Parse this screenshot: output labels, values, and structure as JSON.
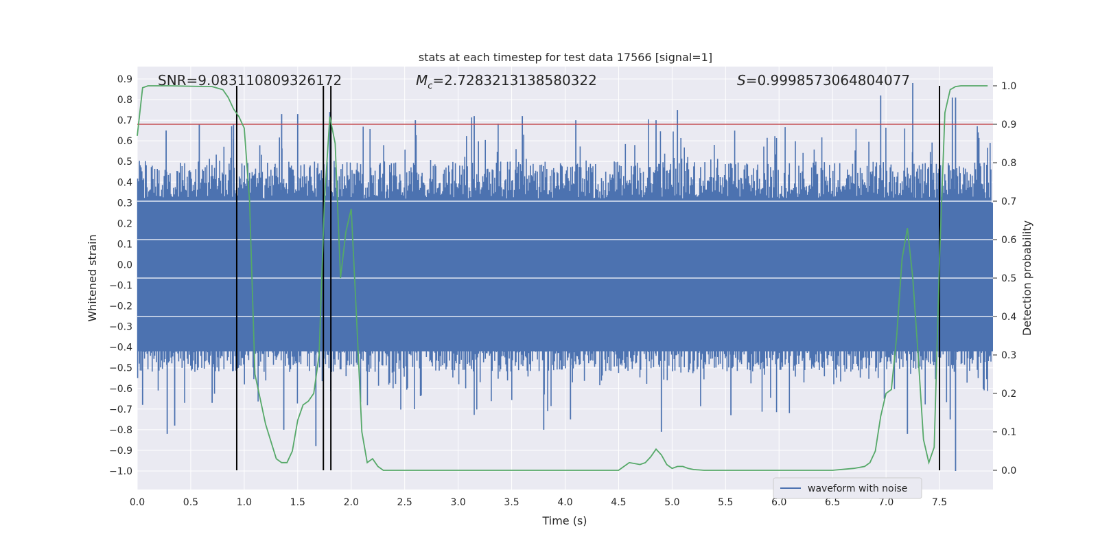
{
  "chart_data": {
    "type": "line",
    "title": "stats at each timestep for test data 17566 [signal=1]",
    "xlabel": "Time (s)",
    "ylabel_left": "Whitened strain",
    "ylabel_right": "Detection probability",
    "xlim": [
      0.0,
      8.0
    ],
    "ylim_left": [
      -1.09,
      0.96
    ],
    "ylim_right": [
      -0.05,
      1.05
    ],
    "x_ticks": [
      "0.0",
      "0.5",
      "1.0",
      "1.5",
      "2.0",
      "2.5",
      "3.0",
      "3.5",
      "4.0",
      "4.5",
      "5.0",
      "5.5",
      "6.0",
      "6.5",
      "7.0",
      "7.5"
    ],
    "y_left_ticks": [
      "0.9",
      "0.8",
      "0.7",
      "0.6",
      "0.5",
      "0.4",
      "0.3",
      "0.2",
      "0.1",
      "0.0",
      "−0.1",
      "−0.2",
      "−0.3",
      "−0.4",
      "−0.5",
      "−0.6",
      "−0.7",
      "−0.8",
      "−0.9",
      "−1.0"
    ],
    "y_right_ticks": [
      "1.0",
      "0.9",
      "0.8",
      "0.7",
      "0.6",
      "0.5",
      "0.4",
      "0.3",
      "0.2",
      "0.1",
      "0.0"
    ],
    "grid": true,
    "legend": {
      "placement": "lower-right",
      "entries": [
        "waveform with noise"
      ]
    },
    "annotations": {
      "snr": "SNR=9.083110809326172",
      "mc_symbol": "M",
      "mc_sub": "c",
      "mc_value": "=2.7283213138580322",
      "s_symbol": "S",
      "s_value": "=0.9998573064804077"
    },
    "threshold_probability": 0.9,
    "vertical_markers_time": [
      0.93,
      1.74,
      1.81,
      7.5
    ],
    "waveform": {
      "name": "waveform with noise",
      "samples_shown": "dense noise, approx. range -0.5 to 0.5 with spikes to 0.82 / -1.0",
      "peak_times": [
        0.27,
        0.58,
        0.9,
        1.35,
        1.5,
        1.8,
        2.6,
        3.15,
        3.6,
        4.1,
        4.85,
        5.05,
        6.95,
        7.25,
        7.62,
        7.65
      ],
      "peak_values": [
        0.65,
        0.68,
        0.68,
        0.73,
        0.73,
        0.74,
        0.7,
        0.72,
        0.72,
        0.7,
        0.7,
        0.75,
        0.82,
        0.88,
        0.81,
        0.81
      ],
      "trough_times": [
        0.05,
        0.28,
        0.35,
        0.7,
        1.37,
        1.67,
        3.8,
        4.05,
        4.9,
        5.55,
        7.2,
        7.6,
        7.65
      ],
      "trough_values": [
        -0.68,
        -0.82,
        -0.78,
        -0.67,
        -0.8,
        -0.88,
        -0.8,
        -0.75,
        -0.81,
        -0.73,
        -0.82,
        -0.75,
        -1.0
      ]
    },
    "probability_series": {
      "color": "#55a868",
      "x": [
        0.0,
        0.05,
        0.1,
        0.2,
        0.3,
        0.5,
        0.7,
        0.8,
        0.85,
        0.9,
        0.95,
        1.0,
        1.05,
        1.1,
        1.2,
        1.3,
        1.35,
        1.4,
        1.45,
        1.5,
        1.55,
        1.6,
        1.65,
        1.7,
        1.75,
        1.8,
        1.85,
        1.9,
        1.95,
        2.0,
        2.05,
        2.1,
        2.15,
        2.2,
        2.25,
        2.3,
        2.4,
        2.5,
        3.0,
        3.5,
        4.0,
        4.5,
        4.55,
        4.6,
        4.7,
        4.75,
        4.8,
        4.85,
        4.9,
        4.95,
        5.0,
        5.05,
        5.1,
        5.15,
        5.2,
        5.3,
        5.5,
        6.0,
        6.5,
        6.7,
        6.8,
        6.85,
        6.9,
        6.95,
        7.0,
        7.05,
        7.1,
        7.15,
        7.2,
        7.25,
        7.3,
        7.35,
        7.4,
        7.45,
        7.5,
        7.55,
        7.6,
        7.65,
        7.7,
        7.8,
        7.95
      ],
      "y": [
        0.87,
        0.995,
        1.0,
        1.0,
        1.0,
        0.999,
        0.998,
        0.99,
        0.97,
        0.94,
        0.92,
        0.89,
        0.7,
        0.25,
        0.12,
        0.03,
        0.02,
        0.02,
        0.05,
        0.13,
        0.17,
        0.18,
        0.2,
        0.3,
        0.7,
        0.92,
        0.85,
        0.5,
        0.62,
        0.68,
        0.4,
        0.1,
        0.02,
        0.03,
        0.01,
        0.0,
        0.0,
        0.0,
        0.0,
        0.0,
        0.0,
        0.0,
        0.01,
        0.02,
        0.015,
        0.02,
        0.035,
        0.055,
        0.04,
        0.015,
        0.005,
        0.01,
        0.01,
        0.005,
        0.002,
        0.0,
        0.0,
        0.0,
        0.0,
        0.005,
        0.01,
        0.02,
        0.05,
        0.14,
        0.2,
        0.21,
        0.35,
        0.55,
        0.63,
        0.5,
        0.3,
        0.08,
        0.02,
        0.06,
        0.55,
        0.93,
        0.99,
        0.998,
        1.0,
        1.0,
        1.0
      ]
    },
    "colors": {
      "waveform": "#4c72b0",
      "probability": "#55a868",
      "threshold": "#c44e52",
      "markers": "#000000",
      "plot_bg": "#eaeaf2",
      "grid": "#ffffff"
    }
  }
}
